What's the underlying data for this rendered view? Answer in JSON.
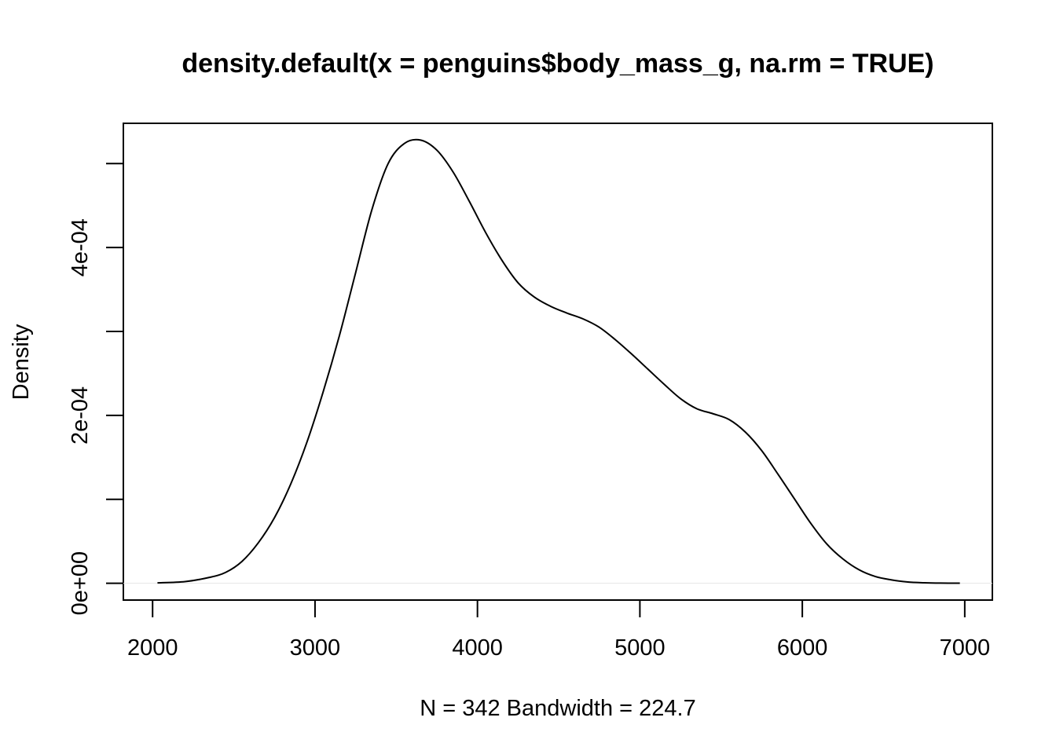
{
  "chart_data": {
    "type": "line",
    "title": "density.default(x = penguins$body_mass_g, na.rm = TRUE)",
    "xlabel": "N = 342   Bandwidth = 224.7",
    "ylabel": "Density",
    "xlim": [
      1820,
      7170
    ],
    "ylim": [
      -2e-05,
      0.000548
    ],
    "x_ticks": [
      2000,
      3000,
      4000,
      5000,
      6000,
      7000
    ],
    "x_tick_labels": [
      "2000",
      "3000",
      "4000",
      "5000",
      "6000",
      "7000"
    ],
    "y_ticks": [
      0,
      0.0001,
      0.0002,
      0.0003,
      0.0004,
      0.0005
    ],
    "y_tick_labels": [
      "0e+00",
      "",
      "2e-04",
      "",
      "4e-04",
      ""
    ],
    "grid": false,
    "series": [
      {
        "x": [
          2030,
          2200,
          2350,
          2450,
          2550,
          2650,
          2750,
          2850,
          2950,
          3050,
          3150,
          3250,
          3350,
          3450,
          3550,
          3650,
          3750,
          3850,
          3950,
          4050,
          4150,
          4250,
          4350,
          4450,
          4550,
          4650,
          4750,
          4850,
          4950,
          5050,
          5150,
          5250,
          5350,
          5450,
          5550,
          5650,
          5750,
          5850,
          5950,
          6050,
          6150,
          6250,
          6350,
          6450,
          6550,
          6650,
          6750,
          6850,
          6970
        ],
        "y": [
          5e-07,
          2e-06,
          7e-06,
          1.3e-05,
          2.6e-05,
          4.8e-05,
          7.8e-05,
          0.000118,
          0.000168,
          0.000228,
          0.000295,
          0.00037,
          0.000445,
          0.0005,
          0.000524,
          0.000528,
          0.000516,
          0.00049,
          0.000455,
          0.000418,
          0.000385,
          0.000358,
          0.000341,
          0.00033,
          0.000322,
          0.000315,
          0.000305,
          0.00029,
          0.000273,
          0.000255,
          0.000237,
          0.00022,
          0.000208,
          0.000202,
          0.000195,
          0.00018,
          0.000158,
          0.00013,
          0.000101,
          7.2e-05,
          4.7e-05,
          2.9e-05,
          1.6e-05,
          8e-06,
          4e-06,
          1.5e-06,
          6e-07,
          2e-07,
          1e-07
        ]
      }
    ]
  }
}
